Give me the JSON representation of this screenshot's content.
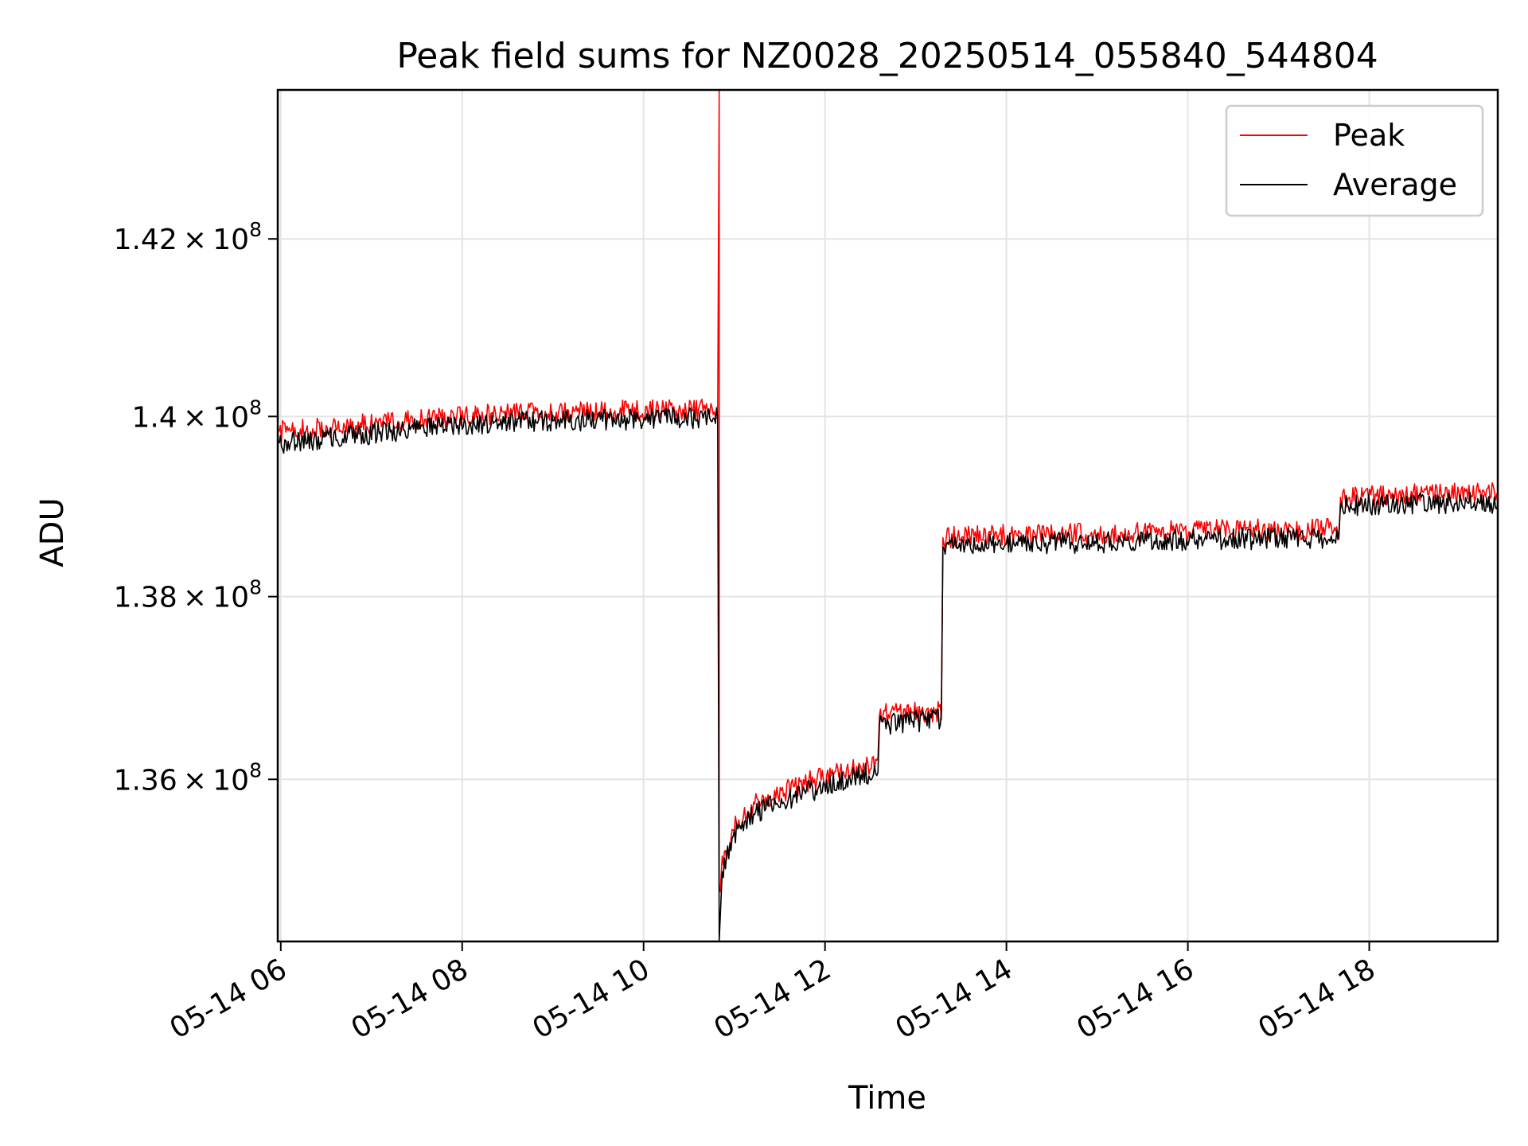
{
  "chart_data": {
    "type": "line",
    "title": "Peak field sums for NZ0028_20250514_055840_544804",
    "xlabel": "Time",
    "ylabel": "ADU",
    "x_ticks": [
      "2025-05-14T06:00",
      "2025-05-14T08:00",
      "2025-05-14T10:00",
      "2025-05-14T12:00",
      "2025-05-14T14:00",
      "2025-05-14T16:00",
      "2025-05-14T18:00"
    ],
    "x_tick_labels": [
      "05-14 06",
      "05-14 08",
      "05-14 10",
      "05-14 12",
      "05-14 14",
      "05-14 16",
      "05-14 18"
    ],
    "y_ticks": [
      {
        "value": 136000000,
        "mantissa": "1.36",
        "exponent": "8"
      },
      {
        "value": 138000000,
        "mantissa": "1.38",
        "exponent": "8"
      },
      {
        "value": 140000000,
        "mantissa": "1.4",
        "exponent": "8"
      },
      {
        "value": 142000000,
        "mantissa": "1.42",
        "exponent": "8"
      }
    ],
    "y_scale": "log",
    "xlim": [
      "2025-05-14T05:58",
      "2025-05-14T19:25"
    ],
    "ylim": [
      134250000,
      143700000
    ],
    "grid": true,
    "legend": "top-right",
    "series": [
      {
        "name": "Peak",
        "color": "#ff0000",
        "noise": 120000,
        "points": [
          [
            "2025-05-14T05:59",
            139830000
          ],
          [
            "2025-05-14T06:30",
            139870000
          ],
          [
            "2025-05-14T07:00",
            139920000
          ],
          [
            "2025-05-14T07:30",
            139960000
          ],
          [
            "2025-05-14T08:00",
            140000000
          ],
          [
            "2025-05-14T08:30",
            140030000
          ],
          [
            "2025-05-14T09:00",
            140050000
          ],
          [
            "2025-05-14T09:30",
            140060000
          ],
          [
            "2025-05-14T10:00",
            140070000
          ],
          [
            "2025-05-14T10:49",
            140080000
          ],
          [
            "2025-05-14T10:50",
            143700000
          ],
          [
            "2025-05-14T10:50",
            134800000
          ],
          [
            "2025-05-14T10:52",
            135100000
          ],
          [
            "2025-05-14T11:00",
            135500000
          ],
          [
            "2025-05-14T11:15",
            135750000
          ],
          [
            "2025-05-14T11:45",
            135950000
          ],
          [
            "2025-05-14T12:15",
            136100000
          ],
          [
            "2025-05-14T12:35",
            136200000
          ],
          [
            "2025-05-14T12:36",
            136700000
          ],
          [
            "2025-05-14T13:17",
            136750000
          ],
          [
            "2025-05-14T13:18",
            138650000
          ],
          [
            "2025-05-14T14:00",
            138680000
          ],
          [
            "2025-05-14T15:00",
            138700000
          ],
          [
            "2025-05-14T16:00",
            138730000
          ],
          [
            "2025-05-14T17:40",
            138750000
          ],
          [
            "2025-05-14T17:41",
            139100000
          ],
          [
            "2025-05-14T18:30",
            139130000
          ],
          [
            "2025-05-14T19:25",
            139140000
          ]
        ]
      },
      {
        "name": "Average",
        "color": "#000000",
        "noise": 120000,
        "points": [
          [
            "2025-05-14T05:59",
            139700000
          ],
          [
            "2025-05-14T06:30",
            139760000
          ],
          [
            "2025-05-14T07:00",
            139810000
          ],
          [
            "2025-05-14T07:30",
            139860000
          ],
          [
            "2025-05-14T08:00",
            139900000
          ],
          [
            "2025-05-14T08:30",
            139930000
          ],
          [
            "2025-05-14T09:00",
            139950000
          ],
          [
            "2025-05-14T09:30",
            139960000
          ],
          [
            "2025-05-14T10:00",
            139970000
          ],
          [
            "2025-05-14T10:49",
            139980000
          ],
          [
            "2025-05-14T10:50",
            134250000
          ],
          [
            "2025-05-14T10:52",
            135000000
          ],
          [
            "2025-05-14T11:00",
            135400000
          ],
          [
            "2025-05-14T11:15",
            135650000
          ],
          [
            "2025-05-14T11:45",
            135850000
          ],
          [
            "2025-05-14T12:15",
            136000000
          ],
          [
            "2025-05-14T12:35",
            136100000
          ],
          [
            "2025-05-14T12:36",
            136600000
          ],
          [
            "2025-05-14T13:17",
            136650000
          ],
          [
            "2025-05-14T13:18",
            138550000
          ],
          [
            "2025-05-14T14:00",
            138580000
          ],
          [
            "2025-05-14T15:00",
            138600000
          ],
          [
            "2025-05-14T16:00",
            138630000
          ],
          [
            "2025-05-14T17:40",
            138650000
          ],
          [
            "2025-05-14T17:41",
            139000000
          ],
          [
            "2025-05-14T18:30",
            139030000
          ],
          [
            "2025-05-14T19:25",
            139040000
          ]
        ]
      }
    ]
  }
}
